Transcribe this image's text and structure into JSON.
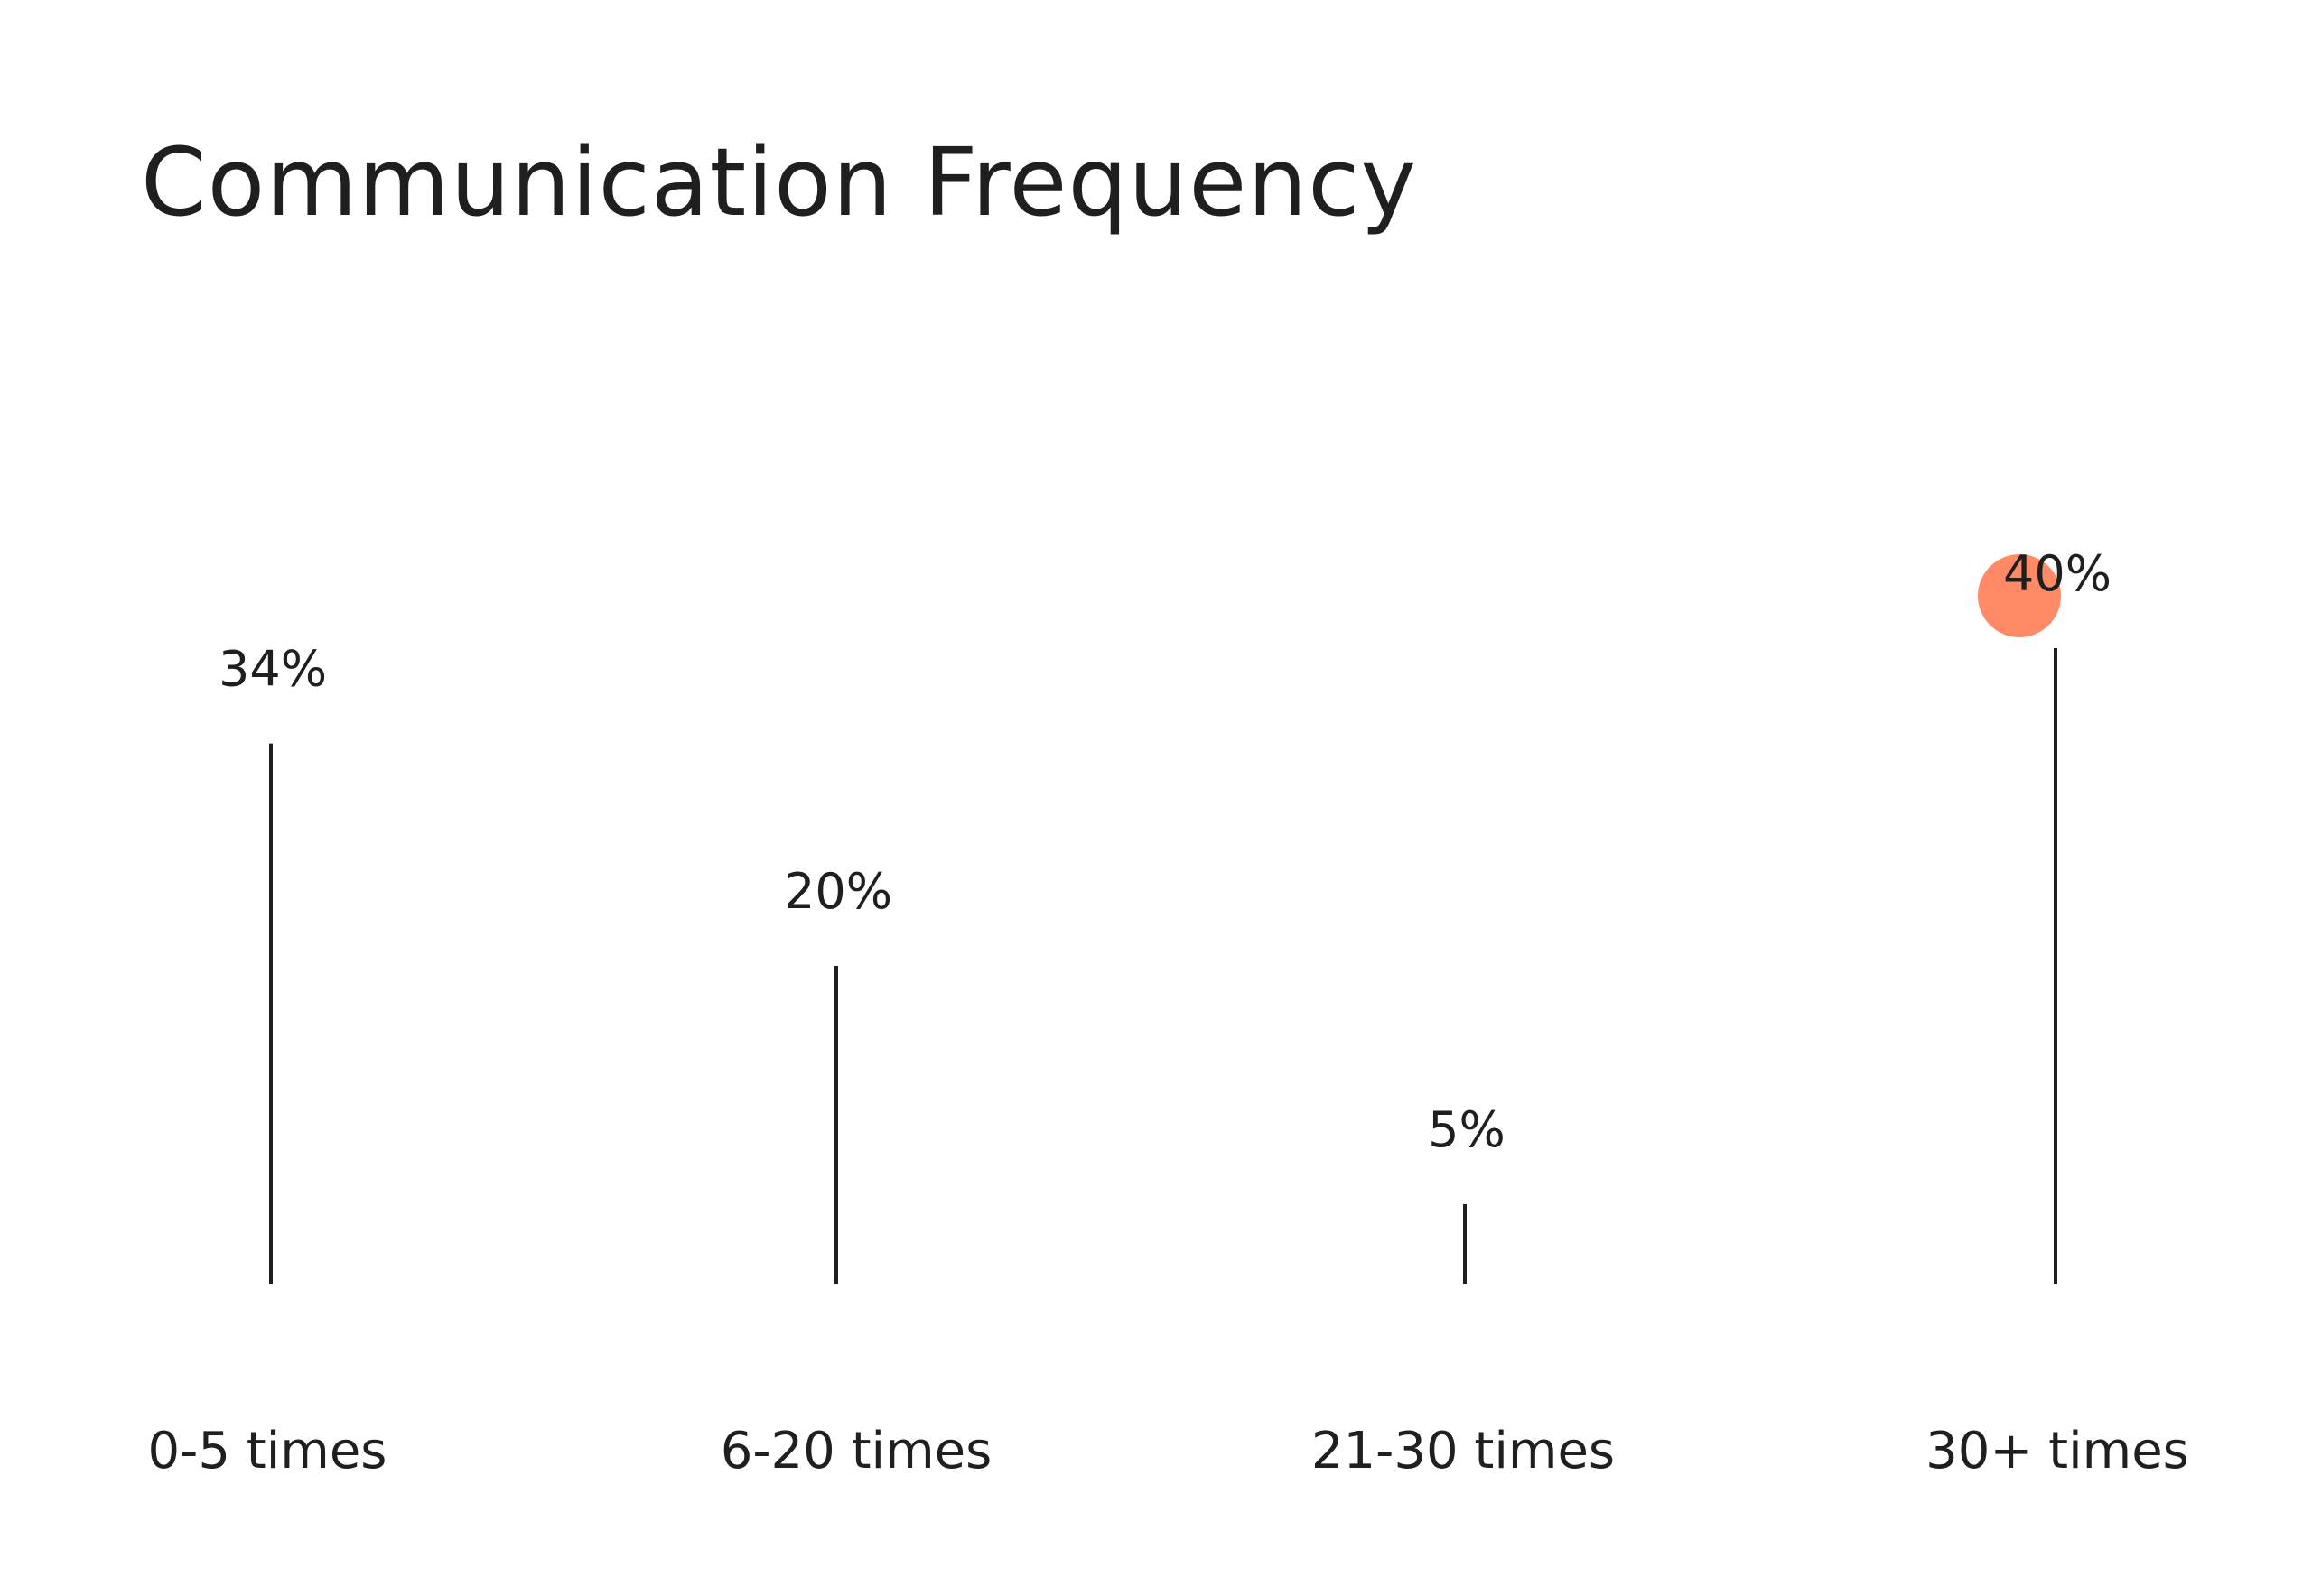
{
  "chart_data": {
    "type": "lollipop",
    "title": "Communication Frequency",
    "categories": [
      "0-5 times",
      "6-20 times",
      "21-30 times",
      "30+ times"
    ],
    "values": [
      34,
      20,
      5,
      40
    ],
    "value_labels": [
      "34%",
      "20%",
      "5%",
      "40%"
    ],
    "unit": "%",
    "highlight_index": 3,
    "colors": {
      "stem": "#1f1f1f",
      "text": "#1f1f1f",
      "highlight": "#ff8a65"
    }
  }
}
